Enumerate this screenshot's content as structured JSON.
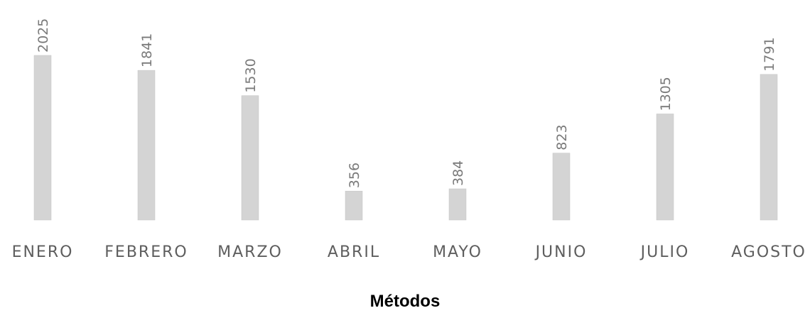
{
  "chart_data": {
    "type": "bar",
    "categories": [
      "ENERO",
      "FEBRERO",
      "MARZO",
      "ABRIL",
      "MAYO",
      "JUNIO",
      "JULIO",
      "AGOSTO"
    ],
    "values": [
      2025,
      1841,
      1530,
      356,
      384,
      823,
      1305,
      1791
    ],
    "title": "",
    "xlabel": "Métodos",
    "ylabel": "",
    "ylim": [
      0,
      2025
    ],
    "grid": false,
    "legend": "none",
    "data_labels": true,
    "bar_color": "#d4d4d4"
  }
}
